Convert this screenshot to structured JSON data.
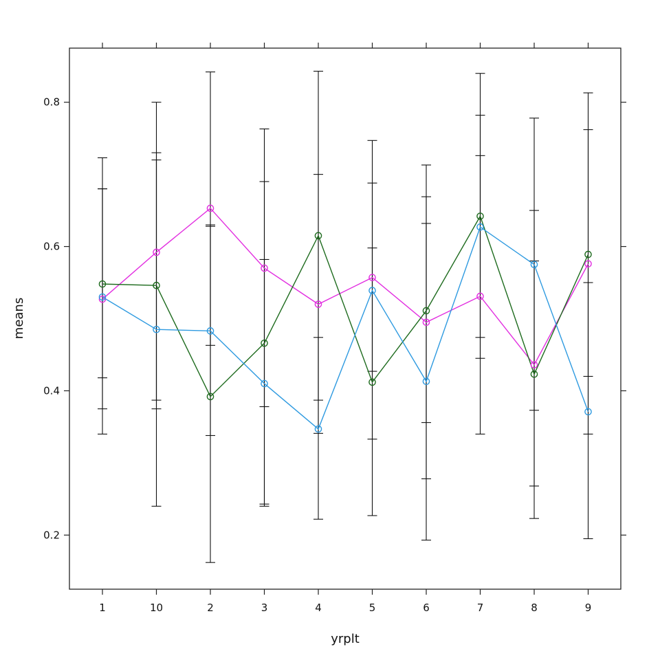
{
  "chart_data": {
    "type": "line",
    "xlabel": "yrplt",
    "ylabel": "means",
    "categories": [
      "1",
      "10",
      "2",
      "3",
      "4",
      "5",
      "6",
      "7",
      "8",
      "9"
    ],
    "ylim": [
      0.125,
      0.875
    ],
    "yticks": [
      0.2,
      0.4,
      0.6,
      0.8
    ],
    "ytick_labels": [
      "0.2",
      "0.4",
      "0.6",
      "0.8"
    ],
    "grid": false,
    "series": [
      {
        "color": "#e22ee0",
        "values": [
          0.527,
          0.592,
          0.653,
          0.57,
          0.52,
          0.557,
          0.495,
          0.531,
          0.436,
          0.576
        ]
      },
      {
        "color": "#1e6b1e",
        "values": [
          0.548,
          0.546,
          0.392,
          0.466,
          0.615,
          0.412,
          0.511,
          0.642,
          0.423,
          0.589
        ]
      },
      {
        "color": "#2e9ae0",
        "values": [
          0.53,
          0.485,
          0.483,
          0.41,
          0.347,
          0.539,
          0.413,
          0.627,
          0.575,
          0.371
        ]
      }
    ],
    "error_bars": [
      {
        "category": "1",
        "ranges": [
          [
            0.34,
            0.723
          ],
          [
            0.375,
            0.68
          ],
          [
            0.418,
            0.68
          ]
        ]
      },
      {
        "category": "10",
        "ranges": [
          [
            0.24,
            0.8
          ],
          [
            0.375,
            0.72
          ],
          [
            0.387,
            0.73
          ]
        ]
      },
      {
        "category": "2",
        "ranges": [
          [
            0.162,
            0.842
          ],
          [
            0.338,
            0.63
          ],
          [
            0.463,
            0.628
          ]
        ]
      },
      {
        "category": "3",
        "ranges": [
          [
            0.24,
            0.763
          ],
          [
            0.243,
            0.69
          ],
          [
            0.378,
            0.582
          ]
        ]
      },
      {
        "category": "4",
        "ranges": [
          [
            0.222,
            0.843
          ],
          [
            0.341,
            0.7
          ],
          [
            0.387,
            0.474
          ]
        ]
      },
      {
        "category": "5",
        "ranges": [
          [
            0.227,
            0.747
          ],
          [
            0.333,
            0.688
          ],
          [
            0.427,
            0.598
          ]
        ]
      },
      {
        "category": "6",
        "ranges": [
          [
            0.193,
            0.713
          ],
          [
            0.278,
            0.669
          ],
          [
            0.356,
            0.632
          ]
        ]
      },
      {
        "category": "7",
        "ranges": [
          [
            0.34,
            0.84
          ],
          [
            0.445,
            0.782
          ],
          [
            0.474,
            0.726
          ]
        ]
      },
      {
        "category": "8",
        "ranges": [
          [
            0.223,
            0.778
          ],
          [
            0.268,
            0.65
          ],
          [
            0.373,
            0.58
          ]
        ]
      },
      {
        "category": "9",
        "ranges": [
          [
            0.195,
            0.813
          ],
          [
            0.34,
            0.762
          ],
          [
            0.42,
            0.55
          ]
        ]
      }
    ]
  }
}
